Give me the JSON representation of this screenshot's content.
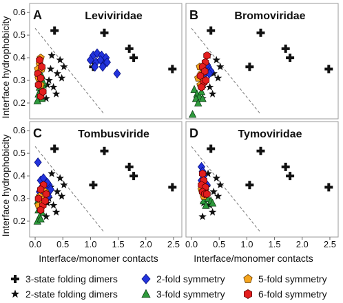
{
  "chart_data": {
    "type": "scatter",
    "xlabel": "Interface/monomer contacts",
    "ylabel": "Interface hydrophobicity",
    "xlim": [
      -0.1,
      2.65
    ],
    "ylim": [
      0.13,
      0.64
    ],
    "xticks": [
      "0.0",
      "0.5",
      "1.0",
      "1.5",
      "2.0",
      "2.5"
    ],
    "xtick_values": [
      0.0,
      0.5,
      1.0,
      1.5,
      2.0,
      2.5
    ],
    "yticks": [
      "0.2",
      "0.3",
      "0.4",
      "0.5",
      "0.6"
    ],
    "ytick_values": [
      0.2,
      0.3,
      0.4,
      0.5,
      0.6
    ],
    "guide_line": {
      "style": "dashed",
      "from": [
        0.0,
        0.53
      ],
      "to": [
        1.25,
        0.15
      ]
    },
    "colors": {
      "three_state": "#111111",
      "two_state": "#111111",
      "two_fold": "#2233dd",
      "three_fold": "#2e9a3c",
      "five_fold": "#f5a51e",
      "six_fold": "#e41e1e"
    },
    "legend": [
      {
        "key": "three_state",
        "label": "3-state folding dimers",
        "marker": "cross"
      },
      {
        "key": "two_fold",
        "label": "2-fold symmetry",
        "marker": "diamond"
      },
      {
        "key": "five_fold",
        "label": "5-fold symmetry",
        "marker": "pentagon"
      },
      {
        "key": "two_state",
        "label": "2-state folding dimers",
        "marker": "star"
      },
      {
        "key": "three_fold",
        "label": "3-fold symmetry",
        "marker": "triangle"
      },
      {
        "key": "six_fold",
        "label": "6-fold symmetry",
        "marker": "hexagon"
      }
    ],
    "three_state_points": [
      [
        0.35,
        0.52
      ],
      [
        1.25,
        0.51
      ],
      [
        1.7,
        0.44
      ],
      [
        1.78,
        0.4
      ],
      [
        1.05,
        0.36
      ],
      [
        2.48,
        0.35
      ]
    ],
    "two_state_points": [
      [
        0.3,
        0.41
      ],
      [
        0.45,
        0.39
      ],
      [
        0.52,
        0.36
      ],
      [
        0.4,
        0.33
      ],
      [
        0.48,
        0.31
      ],
      [
        0.25,
        0.3
      ],
      [
        0.33,
        0.27
      ],
      [
        0.38,
        0.24
      ],
      [
        0.22,
        0.28
      ],
      [
        0.28,
        0.35
      ],
      [
        0.2,
        0.22
      ]
    ],
    "panels": [
      {
        "letter": "A",
        "title": "Leviviridae",
        "two_fold": [
          [
            1.05,
            0.41
          ],
          [
            1.12,
            0.42
          ],
          [
            1.2,
            0.41
          ],
          [
            1.28,
            0.4
          ],
          [
            1.0,
            0.39
          ],
          [
            1.1,
            0.38
          ],
          [
            1.18,
            0.39
          ],
          [
            1.25,
            0.37
          ],
          [
            1.08,
            0.36
          ],
          [
            1.22,
            0.36
          ],
          [
            1.3,
            0.38
          ],
          [
            1.48,
            0.33
          ]
        ],
        "three_fold": [
          [
            0.05,
            0.34
          ],
          [
            0.12,
            0.32
          ],
          [
            0.08,
            0.3
          ],
          [
            0.14,
            0.28
          ],
          [
            0.1,
            0.26
          ],
          [
            0.06,
            0.24
          ],
          [
            0.12,
            0.22
          ],
          [
            0.15,
            0.29
          ],
          [
            0.08,
            0.27
          ],
          [
            0.04,
            0.21
          ]
        ],
        "five_fold": [
          [
            0.08,
            0.37
          ],
          [
            0.05,
            0.35
          ],
          [
            0.1,
            0.4
          ],
          [
            0.06,
            0.31
          ],
          [
            0.12,
            0.35
          ],
          [
            0.1,
            0.28
          ]
        ],
        "six_fold": [
          [
            0.08,
            0.39
          ],
          [
            0.12,
            0.36
          ],
          [
            0.05,
            0.33
          ],
          [
            0.1,
            0.31
          ],
          [
            0.06,
            0.28
          ],
          [
            0.1,
            0.23
          ],
          [
            0.14,
            0.25
          ]
        ]
      },
      {
        "letter": "B",
        "title": "Bromoviridae",
        "two_fold": [
          [
            0.2,
            0.35
          ],
          [
            0.25,
            0.34
          ],
          [
            0.3,
            0.36
          ],
          [
            0.22,
            0.32
          ],
          [
            0.28,
            0.37
          ],
          [
            0.35,
            0.34
          ],
          [
            0.32,
            0.33
          ],
          [
            0.18,
            0.33
          ]
        ],
        "three_fold": [
          [
            0.05,
            0.26
          ],
          [
            0.1,
            0.24
          ],
          [
            0.14,
            0.23
          ],
          [
            0.18,
            0.25
          ],
          [
            0.08,
            0.22
          ],
          [
            0.12,
            0.2
          ],
          [
            0.2,
            0.22
          ],
          [
            0.02,
            0.15
          ]
        ],
        "five_fold": [
          [
            0.15,
            0.36
          ],
          [
            0.18,
            0.33
          ],
          [
            0.12,
            0.31
          ],
          [
            0.22,
            0.3
          ],
          [
            0.16,
            0.28
          ]
        ],
        "six_fold": [
          [
            0.28,
            0.41
          ],
          [
            0.25,
            0.38
          ],
          [
            0.2,
            0.36
          ],
          [
            0.24,
            0.34
          ],
          [
            0.16,
            0.32
          ],
          [
            0.22,
            0.29
          ],
          [
            0.18,
            0.27
          ],
          [
            0.26,
            0.3
          ]
        ]
      },
      {
        "letter": "C",
        "title": "Tombusviride",
        "two_fold": [
          [
            0.05,
            0.46
          ],
          [
            0.1,
            0.38
          ],
          [
            0.18,
            0.37
          ],
          [
            0.25,
            0.36
          ],
          [
            0.12,
            0.35
          ],
          [
            0.2,
            0.34
          ],
          [
            0.08,
            0.33
          ],
          [
            0.16,
            0.32
          ],
          [
            0.24,
            0.31
          ],
          [
            0.1,
            0.3
          ],
          [
            0.22,
            0.37
          ],
          [
            0.28,
            0.34
          ],
          [
            0.15,
            0.39
          ],
          [
            0.08,
            0.29
          ]
        ],
        "three_fold": [
          [
            0.05,
            0.29
          ],
          [
            0.1,
            0.27
          ],
          [
            0.06,
            0.25
          ],
          [
            0.12,
            0.24
          ],
          [
            0.08,
            0.22
          ],
          [
            0.04,
            0.2
          ],
          [
            0.1,
            0.21
          ]
        ],
        "five_fold": [
          [
            0.12,
            0.34
          ],
          [
            0.08,
            0.31
          ],
          [
            0.16,
            0.3
          ],
          [
            0.1,
            0.28
          ],
          [
            0.18,
            0.33
          ],
          [
            0.06,
            0.27
          ]
        ],
        "six_fold": [
          [
            0.15,
            0.36
          ],
          [
            0.1,
            0.34
          ],
          [
            0.2,
            0.32
          ],
          [
            0.06,
            0.3
          ],
          [
            0.14,
            0.27
          ],
          [
            0.1,
            0.25
          ],
          [
            0.18,
            0.29
          ]
        ]
      },
      {
        "letter": "D",
        "title": "Tymoviridae",
        "two_fold": [
          [
            0.18,
            0.44
          ],
          [
            0.2,
            0.42
          ],
          [
            0.22,
            0.4
          ],
          [
            0.18,
            0.38
          ],
          [
            0.24,
            0.37
          ],
          [
            0.28,
            0.36
          ]
        ],
        "three_fold": [
          [
            0.22,
            0.29
          ],
          [
            0.3,
            0.3
          ],
          [
            0.35,
            0.29
          ],
          [
            0.26,
            0.27
          ],
          [
            0.38,
            0.28
          ]
        ],
        "five_fold": [
          [
            0.2,
            0.36
          ],
          [
            0.18,
            0.34
          ],
          [
            0.24,
            0.33
          ],
          [
            0.22,
            0.31
          ]
        ],
        "six_fold": [
          [
            0.2,
            0.41
          ],
          [
            0.22,
            0.38
          ],
          [
            0.18,
            0.36
          ],
          [
            0.25,
            0.35
          ],
          [
            0.2,
            0.33
          ],
          [
            0.24,
            0.32
          ],
          [
            0.28,
            0.32
          ]
        ]
      }
    ]
  }
}
